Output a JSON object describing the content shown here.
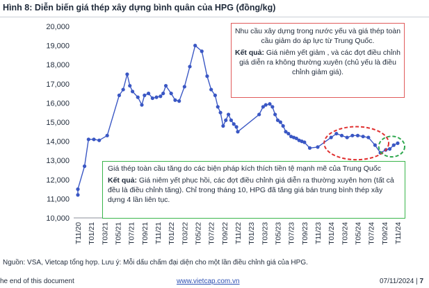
{
  "header": {
    "title": "Hình 8: Diễn biến giá thép xây dựng bình quân của HPG (đồng/kg)"
  },
  "annotations": {
    "red_box": {
      "line1": "Nhu cầu xây dựng trong nước yếu và giá thép toàn cầu giảm do áp lực từ Trung Quốc.",
      "result_label": "Kết quả:",
      "result_text": " Giá niêm yết giảm , và các đợt điều chỉnh giá diễn ra không thường xuyên (chủ yếu là điều chỉnh giảm giá)."
    },
    "green_box": {
      "line1": "Giá thép toàn cầu tăng do các biện pháp kích thích tiền tệ mạnh mẽ của Trung Quốc",
      "result_label": "Kết quả:",
      "result_text": " Giá niêm yết phục hồi, các đợt điều chỉnh giá diễn ra thường xuyên hơn (tất cả đều là điều chỉnh tăng). Chỉ trong tháng 10, HPG đã tăng giá bán trung  bình thép xây dựng 4 lần liên tục."
    }
  },
  "source": "Nguồn: VSA, Vietcap tổng hợp. Lưu ý: Mỗi dấu chấm đại diện cho một lần điều chỉnh giá của HPG.",
  "footer": {
    "left": "he end of this document",
    "link": "www.vietcap.com.vn",
    "date": "07/11/2024 | ",
    "page": "7"
  },
  "colors": {
    "line": "#3a57c4",
    "marker": "#3a57c4",
    "red_highlight": "#e03030",
    "green_highlight": "#2fa84f"
  },
  "chart_data": {
    "type": "line",
    "title": "",
    "xlabel": "",
    "ylabel": "",
    "ylim": [
      10000,
      20000
    ],
    "yticks": [
      "10,000",
      "11,000",
      "12,000",
      "13,000",
      "14,000",
      "15,000",
      "16,000",
      "17,000",
      "18,000",
      "19,000",
      "20,000"
    ],
    "xticks": [
      "T11/20",
      "T01/21",
      "T03/21",
      "T05/21",
      "T07/21",
      "T09/21",
      "T11/21",
      "T01/22",
      "T03/22",
      "T05/22",
      "T07/22",
      "T09/22",
      "T11/22",
      "T01/23",
      "T03/23",
      "T05/23",
      "T07/23",
      "T09/23",
      "T11/23",
      "T01/24",
      "T03/24",
      "T05/24",
      "T07/24",
      "T09/24",
      "T11/24"
    ],
    "series": [
      {
        "marker": "circle",
        "x": [
          0.0,
          0.0,
          0.5,
          0.8,
          1.2,
          1.6,
          2.2,
          3.1,
          3.4,
          3.7,
          3.9,
          4.1,
          4.5,
          4.8,
          5.0,
          5.3,
          5.6,
          5.9,
          6.2,
          6.4,
          6.6,
          7.0,
          7.3,
          7.6,
          8.0,
          8.4,
          8.8,
          9.3,
          9.7,
          10.0,
          10.3,
          10.5,
          10.7,
          10.9,
          11.1,
          11.3,
          11.5,
          11.7,
          11.9,
          12.0,
          13.6,
          13.9,
          14.1,
          14.4,
          14.6,
          14.8,
          15.0,
          15.2,
          15.4,
          15.6,
          15.8,
          16.0,
          16.2,
          16.4,
          16.6,
          16.8,
          17.0,
          17.4,
          18.0,
          19.0,
          19.4,
          19.8,
          20.2,
          20.6,
          21.0,
          21.4,
          21.8,
          22.3,
          22.7,
          23.1,
          23.4,
          23.7,
          24.0
        ],
        "y": [
          11200,
          11500,
          12700,
          14100,
          14100,
          14050,
          14300,
          16400,
          16700,
          17500,
          16900,
          16600,
          16300,
          15900,
          16400,
          16500,
          16250,
          16300,
          16350,
          16500,
          16900,
          16500,
          16150,
          16100,
          16850,
          17900,
          19000,
          18700,
          17400,
          16700,
          16400,
          15800,
          15500,
          14800,
          15100,
          15400,
          15100,
          14900,
          14750,
          14500,
          15400,
          15800,
          15900,
          15950,
          15800,
          15400,
          15100,
          15000,
          14800,
          14500,
          14400,
          14250,
          14200,
          14150,
          14050,
          14000,
          13950,
          13650,
          13700,
          14200,
          14400,
          14300,
          14200,
          14300,
          14300,
          14250,
          14200,
          13800,
          13400,
          13550,
          13600,
          13800,
          13900
        ]
      }
    ],
    "highlights": [
      {
        "color": "red",
        "style": "dashed-ellipse",
        "x_range": [
          19.0,
          22.8
        ]
      },
      {
        "color": "green",
        "style": "dashed-circle",
        "x_range": [
          23.1,
          24.0
        ]
      }
    ],
    "grid": false,
    "legend": "none"
  }
}
